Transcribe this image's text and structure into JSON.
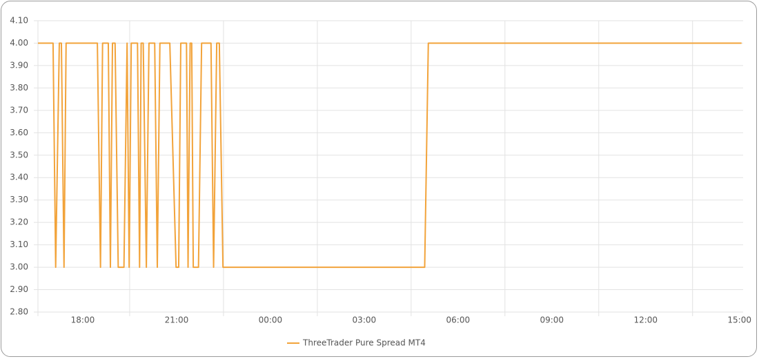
{
  "chart_data": {
    "type": "line",
    "x": [
      "16:34",
      "17:03",
      "17:08",
      "17:15",
      "17:19",
      "17:24",
      "17:28",
      "18:28",
      "18:34",
      "18:38",
      "18:49",
      "18:53",
      "18:57",
      "19:02",
      "19:08",
      "19:19",
      "19:25",
      "19:29",
      "19:33",
      "19:45",
      "19:49",
      "19:52",
      "19:56",
      "20:02",
      "20:07",
      "20:18",
      "20:23",
      "20:28",
      "20:47",
      "20:59",
      "21:04",
      "21:08",
      "21:19",
      "21:22",
      "21:26",
      "21:29",
      "21:32",
      "21:42",
      "21:48",
      "22:06",
      "22:11",
      "22:17",
      "22:22",
      "22:29",
      "04:56",
      "05:03",
      "15:04"
    ],
    "series": [
      {
        "name": "ThreeTrader Pure Spread MT4",
        "color": "#f2a33a",
        "values": [
          4,
          4,
          3,
          4,
          4,
          3,
          4,
          4,
          3,
          4,
          4,
          3,
          4,
          4,
          3,
          3,
          4,
          3,
          4,
          4,
          3,
          4,
          4,
          3,
          4,
          4,
          3,
          4,
          4,
          3,
          3,
          4,
          4,
          3,
          4,
          4,
          3,
          3,
          4,
          4,
          3,
          4,
          4,
          3,
          3,
          4,
          4
        ]
      }
    ],
    "xlim": [
      "16:34",
      "15:07"
    ],
    "xticks": [
      "18:00",
      "21:00",
      "00:00",
      "03:00",
      "06:00",
      "09:00",
      "12:00",
      "15:00"
    ],
    "ylim": [
      2.8,
      4.1
    ],
    "yticks": [
      {
        "value": 2.8,
        "label": "2.80"
      },
      {
        "value": 2.9,
        "label": "2.90"
      },
      {
        "value": 3.0,
        "label": "3.00"
      },
      {
        "value": 3.1,
        "label": "3.10"
      },
      {
        "value": 3.2,
        "label": "3.20"
      },
      {
        "value": 3.3,
        "label": "3.30"
      },
      {
        "value": 3.4,
        "label": "3.40"
      },
      {
        "value": 3.5,
        "label": "3.50"
      },
      {
        "value": 3.6,
        "label": "3.60"
      },
      {
        "value": 3.7,
        "label": "3.70"
      },
      {
        "value": 3.8,
        "label": "3.80"
      },
      {
        "value": 3.9,
        "label": "3.90"
      },
      {
        "value": 4.0,
        "label": "4.00"
      },
      {
        "value": 4.1,
        "label": "4.10"
      }
    ],
    "grid": true,
    "legend": "bottom"
  }
}
